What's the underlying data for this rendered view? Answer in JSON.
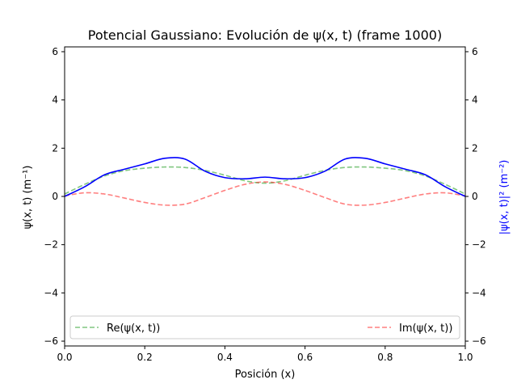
{
  "chart_data": {
    "type": "line",
    "title": "Potencial Gaussiano: Evolución de ψ(x, t) (frame 1000)",
    "xlabel": "Posición (x)",
    "ylabel_left": "ψ(x, t) (m⁻¹)",
    "ylabel_right": "|ψ(x, t)|² (m⁻²)",
    "xlim": [
      0,
      1
    ],
    "ylim": [
      -6.2,
      6.2
    ],
    "x_ticks": [
      "0.0",
      "0.2",
      "0.4",
      "0.6",
      "0.8",
      "1.0"
    ],
    "x_tick_values": [
      0,
      0.2,
      0.4,
      0.6,
      0.8,
      1.0
    ],
    "y_ticks": [
      "−6",
      "−4",
      "−2",
      "0",
      "2",
      "4",
      "6"
    ],
    "y_tick_values": [
      -6,
      -4,
      -2,
      0,
      2,
      4,
      6
    ],
    "legend": {
      "re_label": "Re(ψ(x, t))",
      "im_label": "Im(ψ(x, t))",
      "placement": "bottom"
    },
    "x": [
      0,
      0.05,
      0.1,
      0.15,
      0.2,
      0.25,
      0.3,
      0.35,
      0.4,
      0.45,
      0.5,
      0.55,
      0.6,
      0.65,
      0.7,
      0.75,
      0.8,
      0.85,
      0.9,
      0.95,
      1.0
    ],
    "series": [
      {
        "name": "Re(ψ(x, t))",
        "color": "#2ca02c",
        "style": "dashed",
        "values": [
          0.1,
          0.5,
          0.85,
          1.07,
          1.17,
          1.22,
          1.2,
          1.08,
          0.88,
          0.65,
          0.55,
          0.65,
          0.88,
          1.08,
          1.2,
          1.22,
          1.17,
          1.07,
          0.85,
          0.5,
          0.1
        ]
      },
      {
        "name": "Im(ψ(x, t))",
        "color": "#ff0000",
        "style": "dashed",
        "values": [
          0.02,
          0.15,
          0.1,
          -0.07,
          -0.25,
          -0.36,
          -0.32,
          -0.05,
          0.25,
          0.5,
          0.6,
          0.5,
          0.25,
          -0.05,
          -0.32,
          -0.36,
          -0.25,
          -0.07,
          0.1,
          0.15,
          0.02
        ]
      },
      {
        "name": "|ψ(x, t)|²",
        "color": "#0000ff",
        "style": "solid",
        "values": [
          0,
          0.4,
          0.9,
          1.13,
          1.35,
          1.58,
          1.55,
          1.05,
          0.78,
          0.73,
          0.8,
          0.73,
          0.78,
          1.05,
          1.55,
          1.58,
          1.35,
          1.13,
          0.9,
          0.4,
          0
        ]
      }
    ]
  }
}
